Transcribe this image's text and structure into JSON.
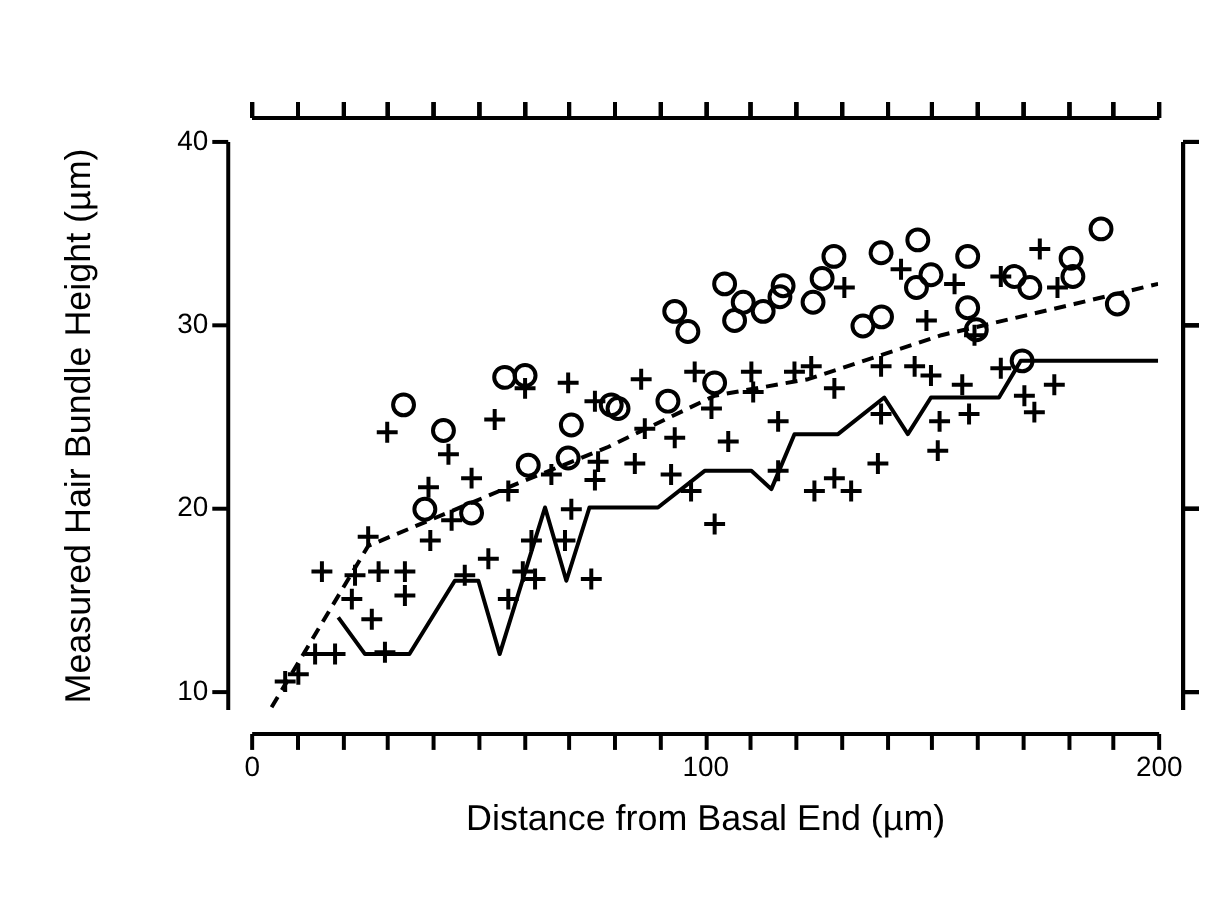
{
  "chart_data": {
    "type": "scatter",
    "xlabel": "Distance from Basal End (µm)",
    "ylabel": "Measured Hair Bundle Height (µm)",
    "xlim": [
      0,
      200
    ],
    "ylim": [
      9,
      40
    ],
    "xticks": [
      0,
      {
        "value": 10,
        "label": null
      },
      {
        "value": 20,
        "label": null
      },
      {
        "value": 30,
        "label": null
      },
      {
        "value": 40,
        "label": null
      },
      {
        "value": 50,
        "label": null
      },
      {
        "value": 60,
        "label": null
      },
      {
        "value": 70,
        "label": null
      },
      {
        "value": 80,
        "label": null
      },
      {
        "value": 90,
        "label": null
      },
      100,
      {
        "value": 110,
        "label": null
      },
      {
        "value": 120,
        "label": null
      },
      {
        "value": 130,
        "label": null
      },
      {
        "value": 140,
        "label": null
      },
      {
        "value": 150,
        "label": null
      },
      {
        "value": 160,
        "label": null
      },
      {
        "value": 170,
        "label": null
      },
      {
        "value": 180,
        "label": null
      },
      {
        "value": 190,
        "label": null
      },
      200
    ],
    "yticks": [
      10,
      20,
      30,
      40
    ],
    "grid": false,
    "series": [
      {
        "type": "scatter",
        "marker": "cross",
        "color": "#000000",
        "x": [
          7.5,
          10.4,
          14.1,
          18.5,
          15.6,
          22.9,
          22.2,
          26.6,
          28.1,
          33.9,
          33.9,
          29.5,
          25.8,
          30,
          39.1,
          39.5,
          44.2,
          43.5,
          48.6,
          53.7,
          56.7,
          52.3,
          47.1,
          56.7,
          59.9,
          62.6,
          61.8,
          66.2,
          70.6,
          69.2,
          75,
          69.9,
          60.4,
          75.8,
          76.5,
          75.8,
          84.6,
          86,
          86.8,
          92.6,
          93.4,
          97,
          102.2,
          97.8,
          101.5,
          105.2,
          110.3,
          110.7,
          116.2,
          116.2,
          119.8,
          123.5,
          128.6,
          130.8,
          124.2,
          128.6,
          132.3,
          138.2,
          138.9,
          138.9,
          143.3,
          146.3,
          148.9,
          149.9,
          151.8,
          151.4,
          155.1,
          156.8,
          158.3,
          159.5,
          165.3,
          165.3,
          170.5,
          172.7,
          173.9,
          177.1,
          177.8
        ],
        "values": [
          10.5,
          10.9,
          12.0,
          12.0,
          16.5,
          16.3,
          15.0,
          13.9,
          16.5,
          16.5,
          15.2,
          12.1,
          18.4,
          24.1,
          21.1,
          18.2,
          19.3,
          22.9,
          21.6,
          24.8,
          20.9,
          17.2,
          16.3,
          15.0,
          16.5,
          16.1,
          18.2,
          21.8,
          19.9,
          18.2,
          16.1,
          26.8,
          26.5,
          25.8,
          22.5,
          21.5,
          22.4,
          27.0,
          24.3,
          21.8,
          23.8,
          20.9,
          19.1,
          27.4,
          25.4,
          23.6,
          27.4,
          26.3,
          24.7,
          22.0,
          27.4,
          27.7,
          26.5,
          32.0,
          20.9,
          21.6,
          20.9,
          22.4,
          27.7,
          25.1,
          33.0,
          27.7,
          30.2,
          27.2,
          24.7,
          23.1,
          32.2,
          26.7,
          25.1,
          29.4,
          32.6,
          27.6,
          26.1,
          25.2,
          34.1,
          26.7,
          32.0
        ]
      },
      {
        "type": "scatter",
        "marker": "circle",
        "color": "#000000",
        "x": [
          33.6,
          42.4,
          55.9,
          60.4,
          38.3,
          48.6,
          61.1,
          70.6,
          69.9,
          79.4,
          80.9,
          91.9,
          93.4,
          96.3,
          104.4,
          102.2,
          106.6,
          108.5,
          112.9,
          116.6,
          117.3,
          123.9,
          125.9,
          128.5,
          134.9,
          139,
          138.9,
          147,
          146.7,
          149.9,
          158,
          158,
          168.3,
          171.7,
          170,
          180.8,
          181.2,
          187.4,
          191,
          159.9
        ],
        "values": [
          25.6,
          24.2,
          27.1,
          27.2,
          19.9,
          19.7,
          22.3,
          24.5,
          22.7,
          25.6,
          25.4,
          25.8,
          30.7,
          29.6,
          32.2,
          26.8,
          30.2,
          31.2,
          30.7,
          31.5,
          32.1,
          31.2,
          32.5,
          33.7,
          29.9,
          30.4,
          33.9,
          34.6,
          32.0,
          32.7,
          33.7,
          30.9,
          32.6,
          32.0,
          28.0,
          33.6,
          32.6,
          35.2,
          31.1,
          29.7
        ]
      },
      {
        "type": "line",
        "line_style": "solid",
        "color": "#000000",
        "x": [
          19.2,
          25.1,
          34.9,
          44.9,
          50.1,
          54.8,
          64.8,
          69.5,
          74.6,
          89.7,
          100,
          110.3,
          114.7,
          119.8,
          129.4,
          139.6,
          144.8,
          149.9,
          164.9,
          169.7,
          200
        ],
        "values": [
          14,
          12,
          12,
          16,
          16,
          12,
          20,
          16,
          20,
          20,
          22,
          22,
          21,
          24,
          24,
          26,
          24,
          26,
          26,
          28,
          28
        ]
      },
      {
        "type": "line",
        "line_style": "dashed",
        "color": "#000000",
        "x": [
          4.5,
          25.8,
          56.7,
          78.7,
          102.2,
          122.8,
          152.2,
          181.5,
          200
        ],
        "values": [
          9.1,
          17.9,
          21.1,
          23.3,
          26.1,
          27.0,
          29.4,
          31.1,
          32.2
        ]
      }
    ]
  }
}
